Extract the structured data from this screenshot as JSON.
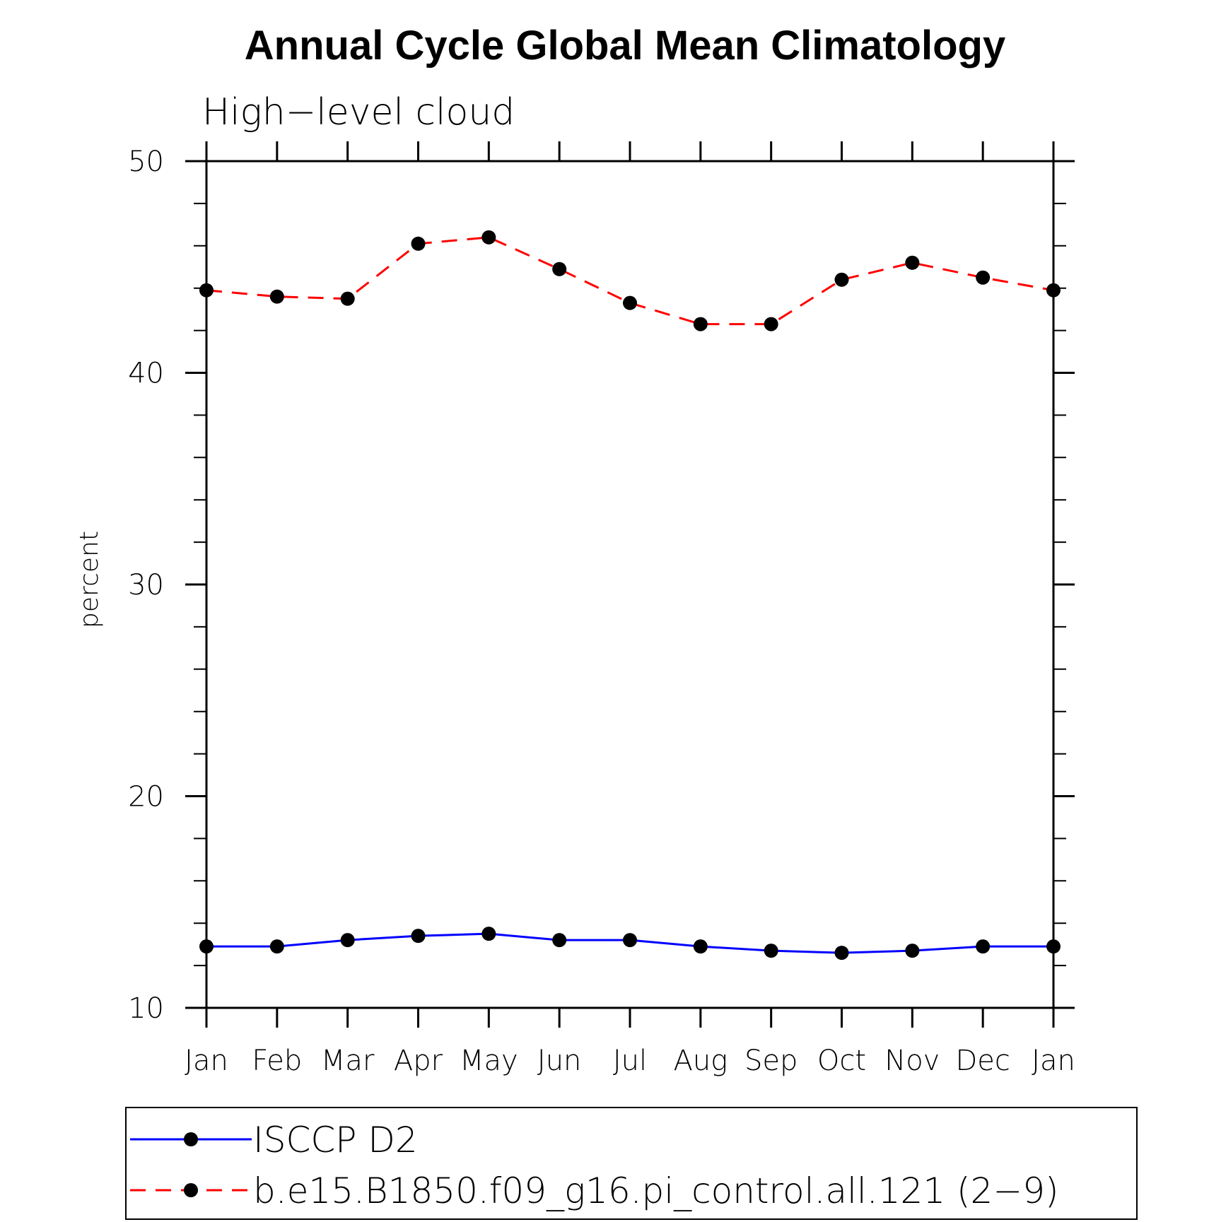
{
  "chart_data": {
    "type": "line",
    "title": "Annual Cycle Global Mean Climatology",
    "subtitle": "High−level cloud",
    "xlabel": "",
    "ylabel": "percent",
    "categories": [
      "Jan",
      "Feb",
      "Mar",
      "Apr",
      "May",
      "Jun",
      "Jul",
      "Aug",
      "Sep",
      "Oct",
      "Nov",
      "Dec",
      "Jan"
    ],
    "ylim": [
      10,
      50
    ],
    "yticks": [
      "10",
      "20",
      "30",
      "40",
      "50"
    ],
    "grid": false,
    "legend_position": "bottom",
    "series": [
      {
        "name": "ISCCP D2",
        "color": "#0000ff",
        "line_style": "solid",
        "marker": "filled-circle",
        "values": [
          12.9,
          12.9,
          13.2,
          13.4,
          13.5,
          13.2,
          13.2,
          12.9,
          12.7,
          12.6,
          12.7,
          12.9,
          12.9
        ]
      },
      {
        "name": "b.e15.B1850.f09_g16.pi_control.all.121 (2−9)",
        "color": "#ff0000",
        "line_style": "dashed",
        "marker": "filled-circle",
        "values": [
          43.9,
          43.6,
          43.5,
          46.1,
          46.4,
          44.9,
          43.3,
          42.3,
          42.3,
          44.4,
          45.2,
          44.5,
          43.9
        ]
      }
    ]
  }
}
